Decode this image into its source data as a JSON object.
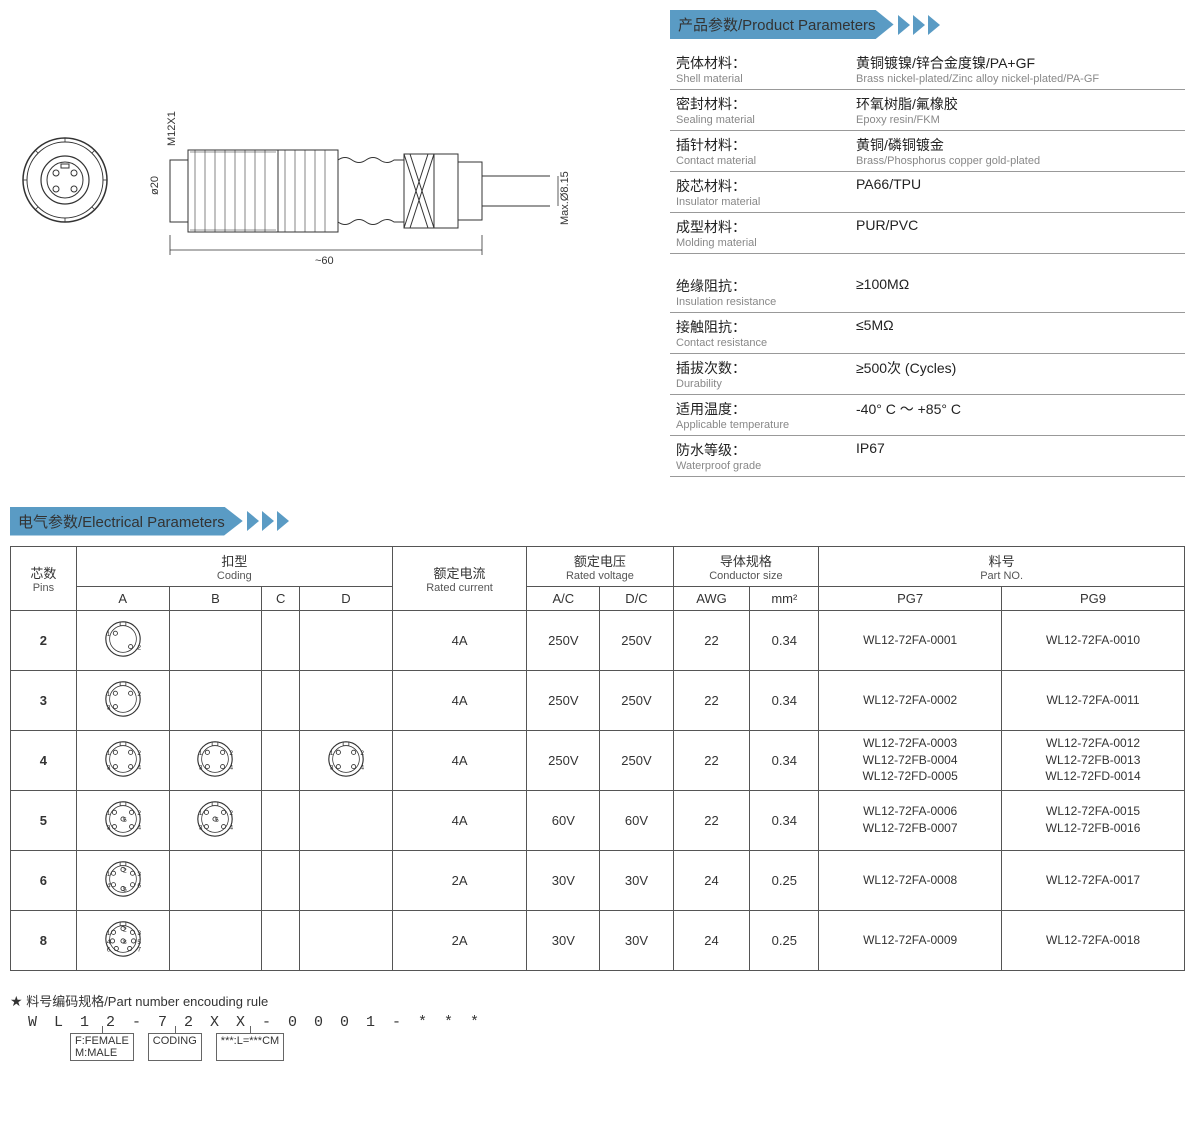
{
  "headers": {
    "product_params": "产品参数/Product Parameters",
    "electrical_params": "电气参数/Electrical Parameters"
  },
  "drawing": {
    "dims": {
      "diameter": "ø20",
      "thread": "M12X1",
      "length": "~60",
      "cable_od": "Max.Ø8.15"
    }
  },
  "product_params": [
    {
      "label_cn": "壳体材料：",
      "label_en": "Shell material",
      "value_cn": "黄铜镀镍/锌合金度镍/PA+GF",
      "value_en": "Brass nickel-plated/Zinc alloy nickel-plated/PA-GF"
    },
    {
      "label_cn": "密封材料：",
      "label_en": "Sealing material",
      "value_cn": "环氧树脂/氟橡胶",
      "value_en": "Epoxy resin/FKM"
    },
    {
      "label_cn": "插针材料：",
      "label_en": "Contact material",
      "value_cn": "黄铜/磷铜镀金",
      "value_en": "Brass/Phosphorus copper gold-plated"
    },
    {
      "label_cn": "胶芯材料：",
      "label_en": "Insulator material",
      "value_cn": "PA66/TPU",
      "value_en": ""
    },
    {
      "label_cn": "成型材料：",
      "label_en": "Molding material",
      "value_cn": "PUR/PVC",
      "value_en": ""
    }
  ],
  "performance_params": [
    {
      "label_cn": "绝缘阻抗：",
      "label_en": "Insulation resistance",
      "value": "≥100MΩ"
    },
    {
      "label_cn": "接触阻抗：",
      "label_en": "Contact resistance",
      "value": "≤5MΩ"
    },
    {
      "label_cn": "插拔次数：",
      "label_en": "Durability",
      "value": "≥500次 (Cycles)"
    },
    {
      "label_cn": "适用温度：",
      "label_en": "Applicable temperature",
      "value": "-40° C ～ +85° C"
    },
    {
      "label_cn": "防水等级：",
      "label_en": "Waterproof grade",
      "value": "IP67"
    }
  ],
  "elec_headers": {
    "pins_cn": "芯数",
    "pins_en": "Pins",
    "coding_cn": "扣型",
    "coding_en": "Coding",
    "rated_current_cn": "额定电流",
    "rated_current_en": "Rated current",
    "rated_voltage_cn": "额定电压",
    "rated_voltage_en": "Rated voltage",
    "conductor_cn": "导体规格",
    "conductor_en": "Conductor size",
    "partno_cn": "料号",
    "partno_en": "Part NO.",
    "coding_cols": [
      "A",
      "B",
      "C",
      "D"
    ],
    "voltage_cols": [
      "A/C",
      "D/C"
    ],
    "cond_cols": [
      "AWG",
      "mm²"
    ],
    "part_cols": [
      "PG7",
      "PG9"
    ]
  },
  "elec_rows": [
    {
      "pins": "2",
      "codings": {
        "A": 2
      },
      "current": "4A",
      "vac": "250V",
      "vdc": "250V",
      "awg": "22",
      "mm2": "0.34",
      "pg7": [
        "WL12-72FA-0001"
      ],
      "pg9": [
        "WL12-72FA-0010"
      ]
    },
    {
      "pins": "3",
      "codings": {
        "A": 3
      },
      "current": "4A",
      "vac": "250V",
      "vdc": "250V",
      "awg": "22",
      "mm2": "0.34",
      "pg7": [
        "WL12-72FA-0002"
      ],
      "pg9": [
        "WL12-72FA-0011"
      ]
    },
    {
      "pins": "4",
      "codings": {
        "A": 4,
        "B": 4,
        "D": 4
      },
      "current": "4A",
      "vac": "250V",
      "vdc": "250V",
      "awg": "22",
      "mm2": "0.34",
      "pg7": [
        "WL12-72FA-0003",
        "WL12-72FB-0004",
        "WL12-72FD-0005"
      ],
      "pg9": [
        "WL12-72FA-0012",
        "WL12-72FB-0013",
        "WL12-72FD-0014"
      ]
    },
    {
      "pins": "5",
      "codings": {
        "A": 5,
        "B": 5
      },
      "current": "4A",
      "vac": "60V",
      "vdc": "60V",
      "awg": "22",
      "mm2": "0.34",
      "pg7": [
        "WL12-72FA-0006",
        "WL12-72FB-0007"
      ],
      "pg9": [
        "WL12-72FA-0015",
        "WL12-72FB-0016"
      ]
    },
    {
      "pins": "6",
      "codings": {
        "A": 6
      },
      "current": "2A",
      "vac": "30V",
      "vdc": "30V",
      "awg": "24",
      "mm2": "0.25",
      "pg7": [
        "WL12-72FA-0008"
      ],
      "pg9": [
        "WL12-72FA-0017"
      ]
    },
    {
      "pins": "8",
      "codings": {
        "A": 8
      },
      "current": "2A",
      "vac": "30V",
      "vdc": "30V",
      "awg": "24",
      "mm2": "0.25",
      "pg7": [
        "WL12-72FA-0009"
      ],
      "pg9": [
        "WL12-72FA-0018"
      ]
    }
  ],
  "encoding": {
    "title": "★ 料号编码规格/Part number encouding rule",
    "pattern": "W L 1 2 - 7 2 X X - 0 0 0 1 - * * *",
    "notes": [
      "F:FEMALE\nM:MALE",
      "CODING",
      "***:L=***CM"
    ]
  },
  "colors": {
    "header_bg": "#5a9bc4",
    "border": "#555555",
    "text": "#333333",
    "subtext": "#888888"
  }
}
